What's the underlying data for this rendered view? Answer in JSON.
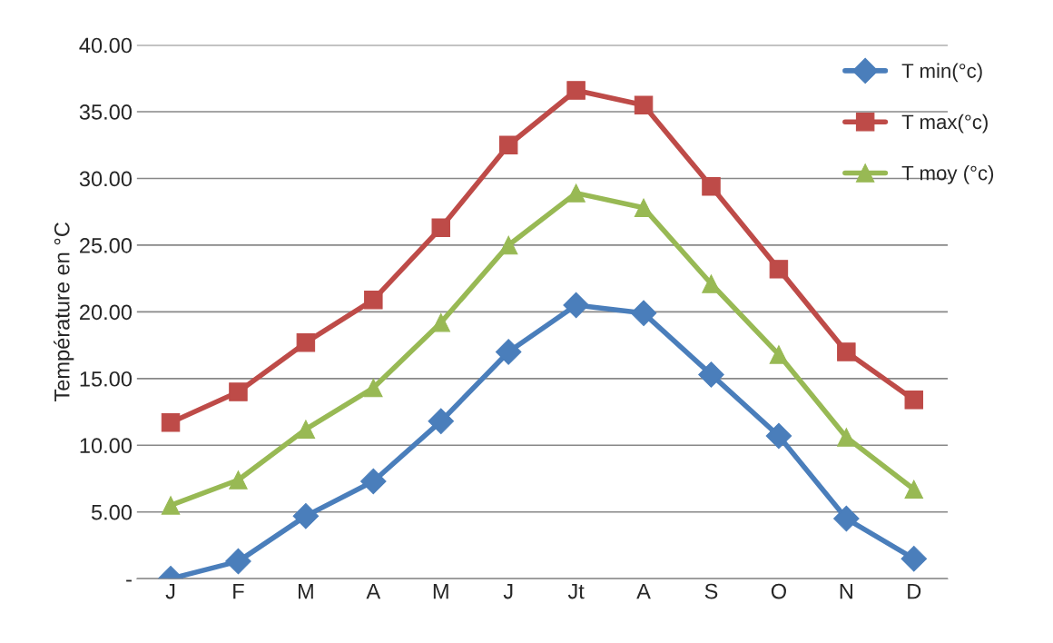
{
  "chart_data": {
    "type": "line",
    "ylabel": "Température en °C",
    "categories": [
      "J",
      "F",
      "M",
      "A",
      "M",
      "J",
      "Jt",
      "A",
      "S",
      "O",
      "N",
      "D"
    ],
    "series": [
      {
        "name": "T min(°c)",
        "color": "#4a7ebb",
        "marker": "diamond",
        "values": [
          0.0,
          1.3,
          4.7,
          7.3,
          11.8,
          17.0,
          20.5,
          19.9,
          15.3,
          10.7,
          4.5,
          1.5
        ]
      },
      {
        "name": "T max(°c)",
        "color": "#be4b48",
        "marker": "square",
        "values": [
          11.7,
          14.0,
          17.7,
          20.9,
          26.3,
          32.5,
          36.6,
          35.5,
          29.4,
          23.2,
          17.0,
          13.4
        ]
      },
      {
        "name": "T moy (°c)",
        "color": "#98b954",
        "marker": "triangle",
        "values": [
          5.5,
          7.4,
          11.2,
          14.3,
          19.2,
          25.0,
          28.9,
          27.8,
          22.1,
          16.8,
          10.6,
          6.7
        ]
      }
    ],
    "ylim": [
      0,
      40
    ],
    "yticks": [
      {
        "value": 0,
        "label": "-"
      },
      {
        "value": 5,
        "label": "5.00"
      },
      {
        "value": 10,
        "label": "10.00"
      },
      {
        "value": 15,
        "label": "15.00"
      },
      {
        "value": 20,
        "label": "20.00"
      },
      {
        "value": 25,
        "label": "25.00"
      },
      {
        "value": 30,
        "label": "30.00"
      },
      {
        "value": 35,
        "label": "35.00"
      },
      {
        "value": 40,
        "label": "40.00"
      }
    ],
    "grid": "y",
    "legend": "top right",
    "line_style": "solid"
  }
}
